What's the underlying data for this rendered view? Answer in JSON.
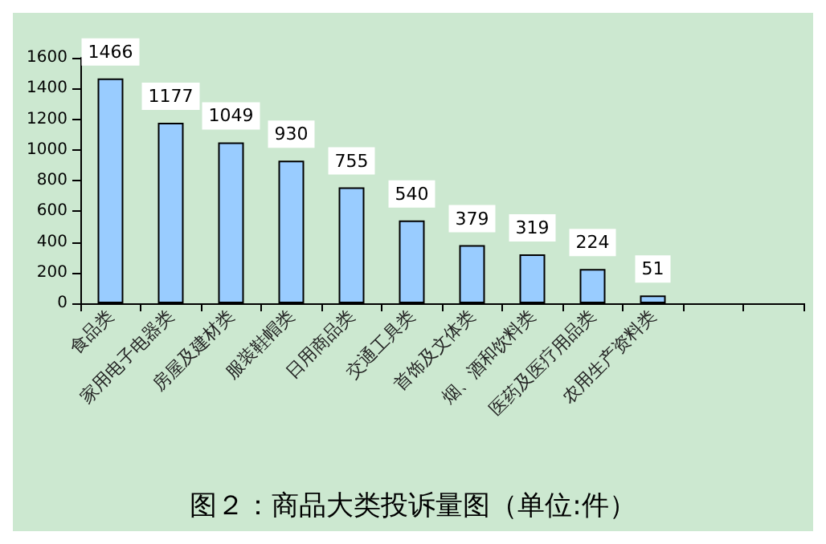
{
  "chart_data": {
    "type": "bar",
    "title": "图２：商品大类投诉量图（单位:件）",
    "categories": [
      "食品类",
      "家用电子电器类",
      "房屋及建材类",
      "服装鞋帽类",
      "日用商品类",
      "交通工具类",
      "首饰及文体类",
      "烟、酒和饮料类",
      "医药及医疗用品类",
      "农用生产资料类",
      null,
      null
    ],
    "values": [
      1466,
      1177,
      1049,
      930,
      755,
      540,
      379,
      319,
      224,
      51,
      null,
      null
    ],
    "color": "#99ccff",
    "ylim": [
      0,
      1600
    ],
    "yticks": [
      0,
      200,
      400,
      600,
      800,
      1000,
      1200,
      1400,
      1600
    ],
    "grid": false,
    "data_labels": true
  }
}
